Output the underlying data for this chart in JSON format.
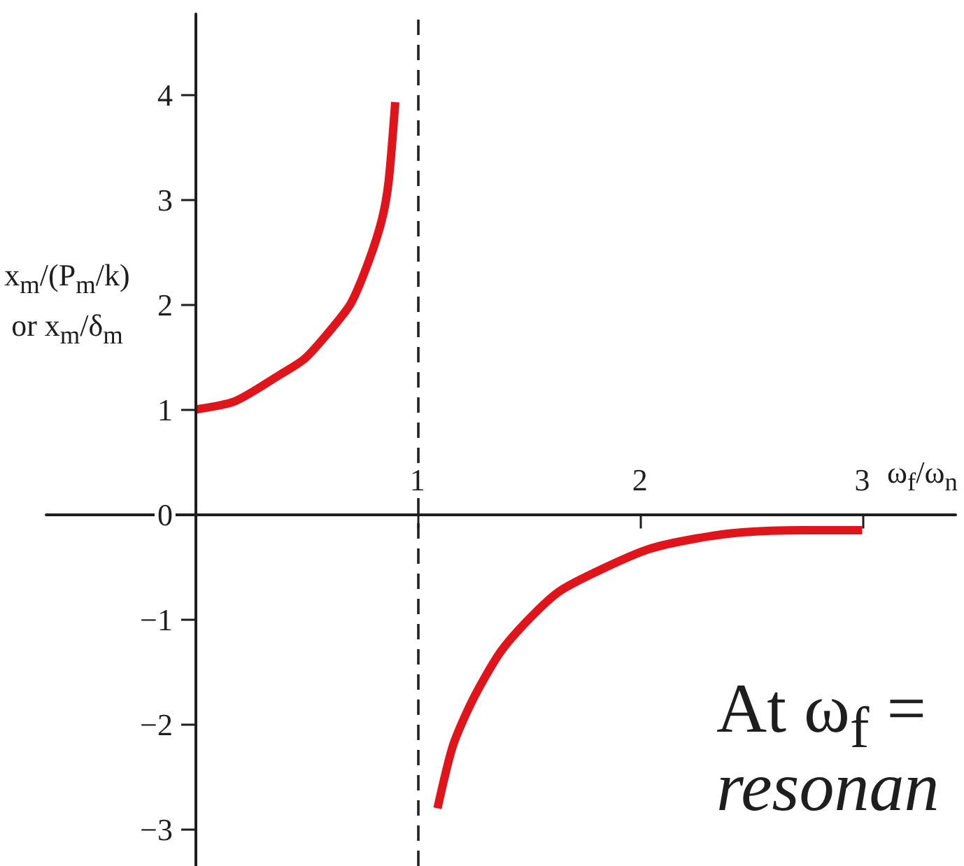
{
  "chart_data": {
    "type": "line",
    "xlabel": "ω$_{f}$/ω$_{n}$",
    "ylabel": "x$_{m}$/(P$_{m}$/k) or x$_{m}$/δ$_{m}$",
    "annotations": [
      "At ω$_{f}$ =",
      "resonan"
    ],
    "series": [
      {
        "color": "#e0141b",
        "x": [
          0,
          0.18,
          0.38,
          0.49,
          0.59,
          0.7,
          0.78,
          0.84,
          0.87,
          0.9
        ],
        "values": [
          1.0,
          1.08,
          1.33,
          1.48,
          1.71,
          2.01,
          2.41,
          2.81,
          3.17,
          3.93
        ]
      },
      {
        "color": "#e0141b",
        "x": [
          1.09,
          1.16,
          1.25,
          1.37,
          1.5,
          1.64,
          1.83,
          2.04,
          2.25,
          2.46,
          2.73,
          3.0
        ],
        "values": [
          -2.8,
          -2.2,
          -1.76,
          -1.32,
          -1.0,
          -0.73,
          -0.52,
          -0.33,
          -0.23,
          -0.17,
          -0.15,
          -0.15
        ]
      }
    ],
    "xlim": [
      -0.67,
      3.42
    ],
    "xticks": [
      1,
      2,
      3
    ],
    "ylim": [
      -3.35,
      4.77
    ],
    "yticks": [
      {
        "value": -3,
        "label": "−3"
      },
      {
        "value": -2,
        "label": "−2"
      },
      {
        "value": -1,
        "label": "−1"
      },
      0,
      1,
      2,
      3,
      4
    ],
    "ref_lines": [
      {
        "axis": "x",
        "value": 1,
        "color": "#222222",
        "line_style": "dashed"
      }
    ],
    "marker": "none"
  }
}
